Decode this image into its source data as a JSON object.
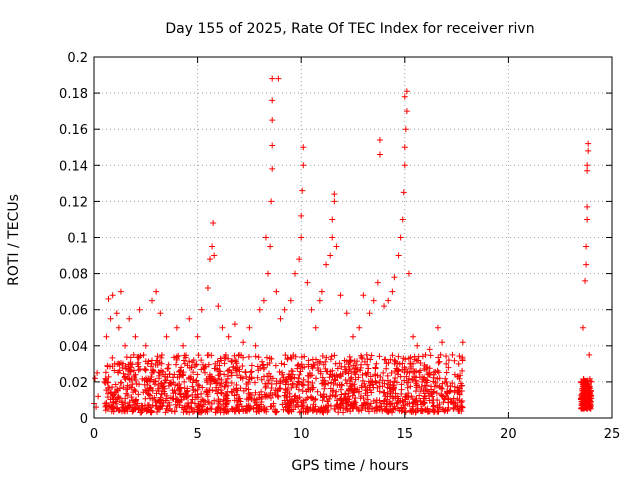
{
  "chart_data": {
    "type": "scatter",
    "title": "Day 155 of 2025, Rate Of TEC Index for receiver rivn",
    "xlabel": "GPS time / hours",
    "ylabel": "ROTI / TECUs",
    "xlim": [
      0,
      25
    ],
    "ylim": [
      0,
      0.2
    ],
    "x_ticks": [
      0,
      5,
      10,
      15,
      20,
      25
    ],
    "x_tick_labels": [
      "0",
      "5",
      "10",
      "15",
      "20",
      "25"
    ],
    "y_ticks": [
      0,
      0.02,
      0.04,
      0.06,
      0.08,
      0.1,
      0.12,
      0.14,
      0.16,
      0.18,
      0.2
    ],
    "y_tick_labels": [
      "0",
      "0.02",
      "0.04",
      "0.06",
      "0.08",
      "0.1",
      "0.12",
      "0.14",
      "0.16",
      "0.18",
      "0.2"
    ],
    "grid": true,
    "legend": "none",
    "marker": "plus",
    "marker_color": "#ff0000",
    "series": [
      {
        "points": [
          [
            0.0,
            0.008
          ],
          [
            0.05,
            0.022
          ],
          [
            0.1,
            0.006
          ],
          [
            0.15,
            0.025
          ],
          [
            0.2,
            0.012
          ],
          [
            0.5,
            0.02
          ],
          [
            0.6,
            0.045
          ],
          [
            0.7,
            0.066
          ],
          [
            0.8,
            0.055
          ],
          [
            0.9,
            0.068
          ],
          [
            1.0,
            0.03
          ],
          [
            1.1,
            0.058
          ],
          [
            1.2,
            0.05
          ],
          [
            1.3,
            0.07
          ],
          [
            1.5,
            0.04
          ],
          [
            1.7,
            0.055
          ],
          [
            2.0,
            0.045
          ],
          [
            2.2,
            0.06
          ],
          [
            2.5,
            0.04
          ],
          [
            2.8,
            0.065
          ],
          [
            3.0,
            0.07
          ],
          [
            3.2,
            0.058
          ],
          [
            3.5,
            0.045
          ],
          [
            4.0,
            0.05
          ],
          [
            4.3,
            0.04
          ],
          [
            4.6,
            0.055
          ],
          [
            5.0,
            0.045
          ],
          [
            5.2,
            0.06
          ],
          [
            5.5,
            0.072
          ],
          [
            5.6,
            0.088
          ],
          [
            5.7,
            0.095
          ],
          [
            5.75,
            0.108
          ],
          [
            5.8,
            0.09
          ],
          [
            6.0,
            0.062
          ],
          [
            6.2,
            0.05
          ],
          [
            6.5,
            0.045
          ],
          [
            6.8,
            0.052
          ],
          [
            7.0,
            0.035
          ],
          [
            7.2,
            0.042
          ],
          [
            7.5,
            0.05
          ],
          [
            7.8,
            0.04
          ],
          [
            8.0,
            0.06
          ],
          [
            8.2,
            0.065
          ],
          [
            8.3,
            0.1
          ],
          [
            8.4,
            0.08
          ],
          [
            8.5,
            0.095
          ],
          [
            8.55,
            0.12
          ],
          [
            8.6,
            0.138
          ],
          [
            8.6,
            0.151
          ],
          [
            8.6,
            0.165
          ],
          [
            8.6,
            0.176
          ],
          [
            8.6,
            0.188
          ],
          [
            8.9,
            0.188
          ],
          [
            8.8,
            0.07
          ],
          [
            9.0,
            0.055
          ],
          [
            9.2,
            0.06
          ],
          [
            9.5,
            0.065
          ],
          [
            9.7,
            0.08
          ],
          [
            9.9,
            0.088
          ],
          [
            10.0,
            0.1
          ],
          [
            10.0,
            0.112
          ],
          [
            10.05,
            0.126
          ],
          [
            10.1,
            0.14
          ],
          [
            10.1,
            0.15
          ],
          [
            10.3,
            0.075
          ],
          [
            10.5,
            0.06
          ],
          [
            10.7,
            0.05
          ],
          [
            10.9,
            0.065
          ],
          [
            11.0,
            0.07
          ],
          [
            11.2,
            0.085
          ],
          [
            11.4,
            0.09
          ],
          [
            11.5,
            0.1
          ],
          [
            11.5,
            0.11
          ],
          [
            11.6,
            0.12
          ],
          [
            11.6,
            0.124
          ],
          [
            11.7,
            0.095
          ],
          [
            11.9,
            0.068
          ],
          [
            12.2,
            0.058
          ],
          [
            12.5,
            0.045
          ],
          [
            12.8,
            0.05
          ],
          [
            13.0,
            0.068
          ],
          [
            13.3,
            0.058
          ],
          [
            13.5,
            0.065
          ],
          [
            13.7,
            0.075
          ],
          [
            13.8,
            0.154
          ],
          [
            13.8,
            0.146
          ],
          [
            14.0,
            0.062
          ],
          [
            14.2,
            0.065
          ],
          [
            14.4,
            0.07
          ],
          [
            14.5,
            0.078
          ],
          [
            14.7,
            0.09
          ],
          [
            14.8,
            0.1
          ],
          [
            14.9,
            0.11
          ],
          [
            14.95,
            0.125
          ],
          [
            15.0,
            0.14
          ],
          [
            15.0,
            0.15
          ],
          [
            15.05,
            0.16
          ],
          [
            15.1,
            0.17
          ],
          [
            15.0,
            0.178
          ],
          [
            15.1,
            0.181
          ],
          [
            15.2,
            0.08
          ],
          [
            15.4,
            0.045
          ],
          [
            15.6,
            0.04
          ],
          [
            16.0,
            0.035
          ],
          [
            16.2,
            0.038
          ],
          [
            16.6,
            0.05
          ],
          [
            16.8,
            0.042
          ],
          [
            17.0,
            0.03
          ],
          [
            17.3,
            0.035
          ],
          [
            17.6,
            0.03
          ],
          [
            17.8,
            0.042
          ],
          [
            23.5,
            0.02
          ],
          [
            23.6,
            0.05
          ],
          [
            23.7,
            0.076
          ],
          [
            23.75,
            0.085
          ],
          [
            23.75,
            0.095
          ],
          [
            23.8,
            0.11
          ],
          [
            23.8,
            0.117
          ],
          [
            23.8,
            0.137
          ],
          [
            23.8,
            0.14
          ],
          [
            23.85,
            0.148
          ],
          [
            23.85,
            0.152
          ],
          [
            23.9,
            0.035
          ],
          [
            23.95,
            0.015
          ],
          [
            24.0,
            0.02
          ]
        ],
        "dense_bands": [
          {
            "x_range": [
              0.5,
              17.8
            ],
            "y_range": [
              0.003,
              0.035
            ],
            "count": 1600
          },
          {
            "x_range": [
              23.5,
              24.0
            ],
            "y_range": [
              0.005,
              0.022
            ],
            "count": 160
          }
        ]
      }
    ]
  }
}
